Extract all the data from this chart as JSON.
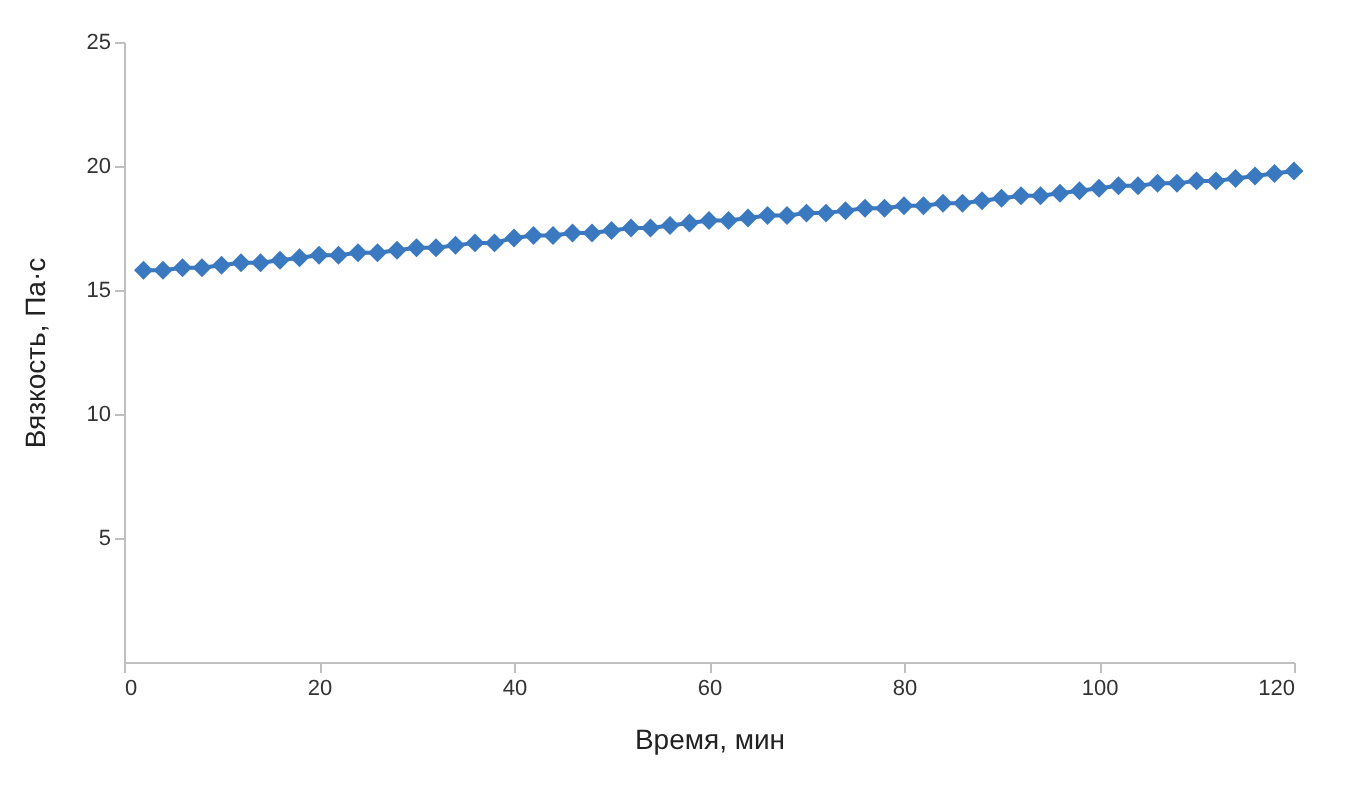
{
  "chart_data": {
    "type": "line",
    "xlabel": "Время, мин",
    "ylabel": "Вязкость, Па·с",
    "x": [
      2,
      4,
      6,
      8,
      10,
      12,
      14,
      16,
      18,
      20,
      22,
      24,
      26,
      28,
      30,
      32,
      34,
      36,
      38,
      40,
      42,
      44,
      46,
      48,
      50,
      52,
      54,
      56,
      58,
      60,
      62,
      64,
      66,
      68,
      70,
      72,
      74,
      76,
      78,
      80,
      82,
      84,
      86,
      88,
      90,
      92,
      94,
      96,
      98,
      100,
      102,
      104,
      106,
      108,
      110,
      112,
      114,
      116,
      118,
      120
    ],
    "series": [
      {
        "color": "#3a78c0",
        "values": [
          15.8,
          15.8,
          15.9,
          15.9,
          16.0,
          16.1,
          16.1,
          16.2,
          16.3,
          16.4,
          16.4,
          16.5,
          16.5,
          16.6,
          16.7,
          16.7,
          16.8,
          16.9,
          16.9,
          17.1,
          17.2,
          17.2,
          17.3,
          17.3,
          17.4,
          17.5,
          17.5,
          17.6,
          17.7,
          17.8,
          17.8,
          17.9,
          18.0,
          18.0,
          18.1,
          18.1,
          18.2,
          18.3,
          18.3,
          18.4,
          18.4,
          18.5,
          18.5,
          18.6,
          18.7,
          18.8,
          18.8,
          18.9,
          19.0,
          19.1,
          19.2,
          19.2,
          19.3,
          19.3,
          19.4,
          19.4,
          19.5,
          19.6,
          19.7,
          19.8
        ]
      }
    ],
    "xlim": [
      0,
      120
    ],
    "xticks": [
      0,
      20,
      40,
      60,
      80,
      100,
      120
    ],
    "ylim": [
      0,
      25
    ],
    "yticks": [
      5,
      10,
      15,
      20,
      25
    ],
    "grid": false,
    "marker": "diamond"
  }
}
